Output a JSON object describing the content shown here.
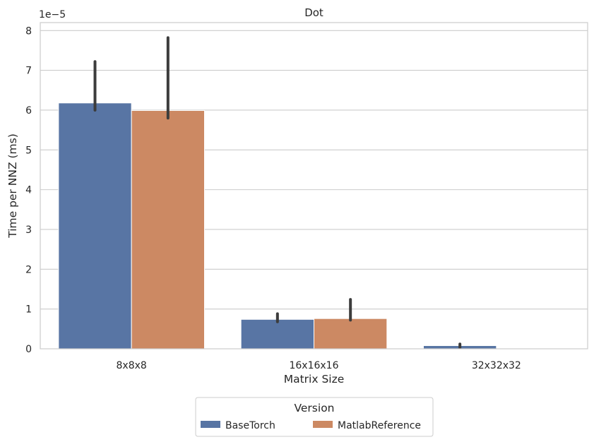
{
  "chart_data": {
    "type": "bar",
    "title": "Dot",
    "xlabel": "Matrix Size",
    "ylabel": "Time per NNZ (ms)",
    "y_offset_label": "1e−5",
    "y_scale_factor": 1e-05,
    "ylim": [
      0,
      8.2
    ],
    "yticks": [
      0,
      1,
      2,
      3,
      4,
      5,
      6,
      7,
      8
    ],
    "categories": [
      "8x8x8",
      "16x16x16",
      "32x32x32"
    ],
    "series": [
      {
        "name": "BaseTorch",
        "color": "#5875a4",
        "values": [
          6.18,
          0.74,
          0.08
        ],
        "error_low": [
          6.0,
          0.68,
          0.03
        ],
        "error_high": [
          7.22,
          0.88,
          0.12
        ]
      },
      {
        "name": "MatlabReference",
        "color": "#cc8963",
        "values": [
          5.99,
          0.76,
          0.0
        ],
        "error_low": [
          5.8,
          0.72,
          0.0
        ],
        "error_high": [
          7.82,
          1.24,
          0.0
        ]
      }
    ],
    "grid": true,
    "legend": {
      "title": "Version",
      "placement": "bottom-center"
    }
  }
}
